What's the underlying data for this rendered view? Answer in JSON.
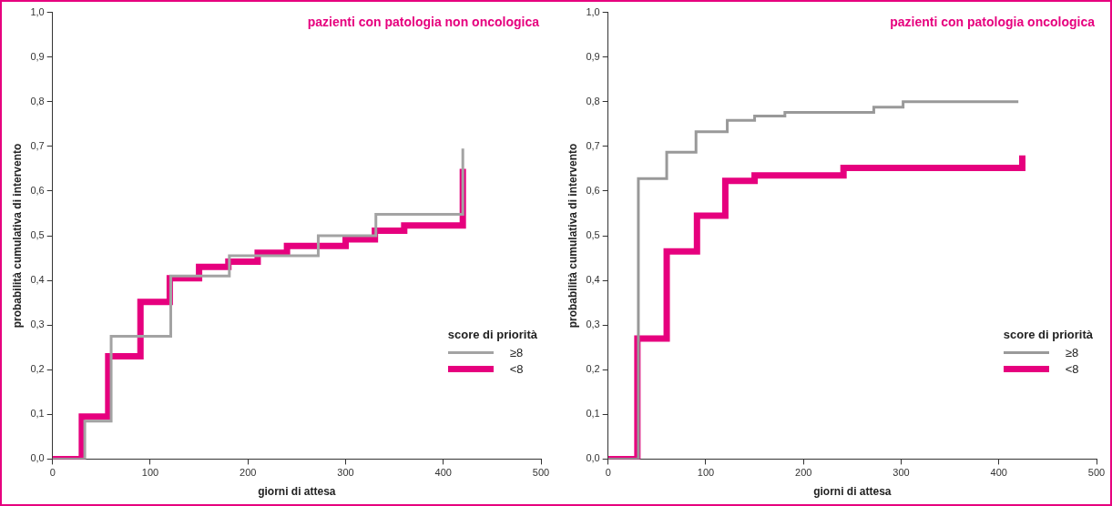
{
  "chart_data": [
    {
      "type": "step",
      "title": "pazienti con patologia non oncologica",
      "xlabel": "giorni di attesa",
      "ylabel": "probabilità cumulativa di intervento",
      "legend_title": "score di priorità",
      "legend": "bottom right",
      "xlim": [
        0,
        500
      ],
      "xticks": [
        0,
        100,
        200,
        300,
        400,
        500
      ],
      "ylim": [
        0,
        1
      ],
      "yticks": [
        {
          "value": 0,
          "label": "0,0"
        },
        {
          "value": 0.1,
          "label": "0,1"
        },
        {
          "value": 0.2,
          "label": "0,2"
        },
        {
          "value": 0.3,
          "label": "0,3"
        },
        {
          "value": 0.4,
          "label": "0,4"
        },
        {
          "value": 0.5,
          "label": "0,5"
        },
        {
          "value": 0.6,
          "label": "0,6"
        },
        {
          "value": 0.7,
          "label": "0,7"
        },
        {
          "value": 0.8,
          "label": "0,8"
        },
        {
          "value": 0.9,
          "label": "0,9"
        },
        {
          "value": 1,
          "label": "1,0"
        }
      ],
      "series": [
        {
          "name": "≥8",
          "color": "#a3a3a3",
          "x": [
            0,
            33,
            60,
            121,
            181,
            272,
            331,
            420,
            420
          ],
          "values": [
            0,
            0.085,
            0.275,
            0.41,
            0.455,
            0.5,
            0.548,
            0.548,
            0.695
          ]
        },
        {
          "name": "<8",
          "color": "#e6007e",
          "x": [
            0,
            30,
            57,
            90,
            120,
            150,
            180,
            210,
            240,
            300,
            330,
            360,
            420,
            420
          ],
          "values": [
            0,
            0.095,
            0.23,
            0.352,
            0.405,
            0.43,
            0.442,
            0.462,
            0.477,
            0.492,
            0.511,
            0.523,
            0.523,
            0.65
          ]
        }
      ]
    },
    {
      "type": "step",
      "title": "pazienti con patologia oncologica",
      "xlabel": "giorni di attesa",
      "ylabel": "probabilità cumulativa di intervento",
      "legend_title": "score di priorità",
      "legend": "bottom right",
      "xlim": [
        0,
        500
      ],
      "xticks": [
        0,
        100,
        200,
        300,
        400,
        500
      ],
      "ylim": [
        0,
        1
      ],
      "yticks": [
        {
          "value": 0,
          "label": "0,0"
        },
        {
          "value": 0.1,
          "label": "0,1"
        },
        {
          "value": 0.2,
          "label": "0,2"
        },
        {
          "value": 0.3,
          "label": "0,3"
        },
        {
          "value": 0.4,
          "label": "0,4"
        },
        {
          "value": 0.5,
          "label": "0,5"
        },
        {
          "value": 0.6,
          "label": "0,6"
        },
        {
          "value": 0.7,
          "label": "0,7"
        },
        {
          "value": 0.8,
          "label": "0,8"
        },
        {
          "value": 0.9,
          "label": "0,9"
        },
        {
          "value": 1,
          "label": "1,0"
        }
      ],
      "series": [
        {
          "name": "≥8",
          "color": "#999999",
          "x": [
            0,
            31,
            60,
            90,
            122,
            150,
            181,
            272,
            302,
            420
          ],
          "values": [
            0,
            0.628,
            0.687,
            0.733,
            0.758,
            0.768,
            0.776,
            0.788,
            0.8,
            0.8
          ]
        },
        {
          "name": "<8",
          "color": "#e6007e",
          "x": [
            0,
            30,
            60,
            91,
            120,
            150,
            241,
            424,
            424
          ],
          "values": [
            0,
            0.27,
            0.465,
            0.545,
            0.623,
            0.635,
            0.652,
            0.652,
            0.68
          ]
        }
      ]
    }
  ]
}
